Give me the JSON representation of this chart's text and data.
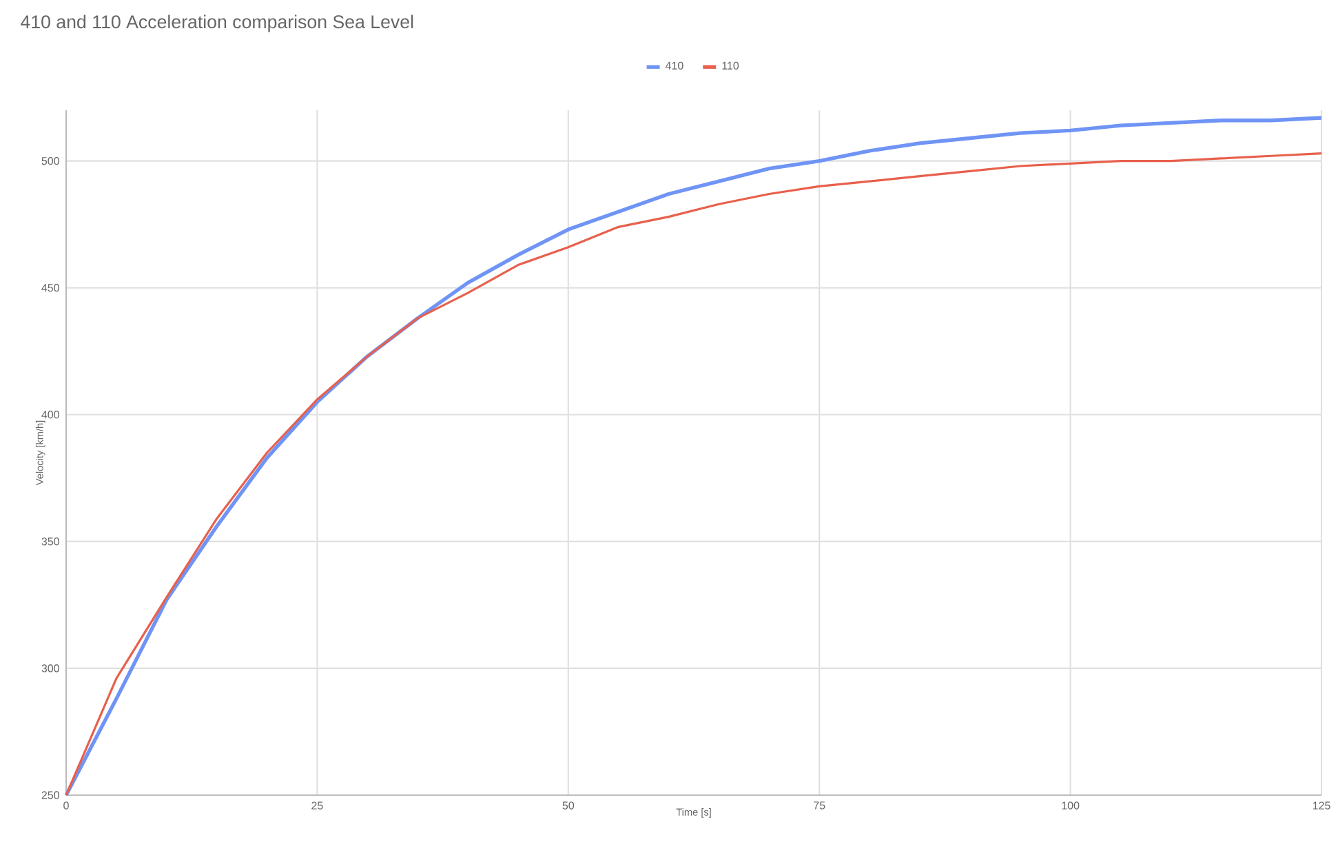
{
  "chart_data": {
    "type": "line",
    "title": "410 and 110 Acceleration comparison Sea Level",
    "xlabel": "Time [s]",
    "ylabel": "Velocity [km/h]",
    "x": [
      0,
      5,
      10,
      15,
      20,
      25,
      30,
      35,
      40,
      45,
      50,
      55,
      60,
      65,
      70,
      75,
      80,
      85,
      90,
      95,
      100,
      105,
      110,
      115,
      120,
      125
    ],
    "series": [
      {
        "name": "410",
        "color": "#6f94f5",
        "values": [
          250,
          288,
          327,
          356,
          383,
          405,
          423,
          438,
          452,
          463,
          473,
          480,
          487,
          492,
          497,
          500,
          504,
          507,
          509,
          511,
          512,
          514,
          515,
          516,
          516,
          517
        ]
      },
      {
        "name": "110",
        "color": "#e8604c",
        "values": [
          250,
          296,
          328,
          359,
          385,
          406,
          423,
          438,
          448,
          459,
          466,
          474,
          478,
          483,
          487,
          490,
          492,
          494,
          496,
          498,
          499,
          500,
          500,
          501,
          502,
          503
        ]
      }
    ],
    "xlim": [
      0,
      125
    ],
    "xticks": [
      0,
      25,
      50,
      75,
      100,
      125
    ],
    "ylim": [
      250,
      520
    ],
    "yticks": [
      250,
      300,
      350,
      400,
      450,
      500
    ],
    "grid": true,
    "legend": "top"
  }
}
